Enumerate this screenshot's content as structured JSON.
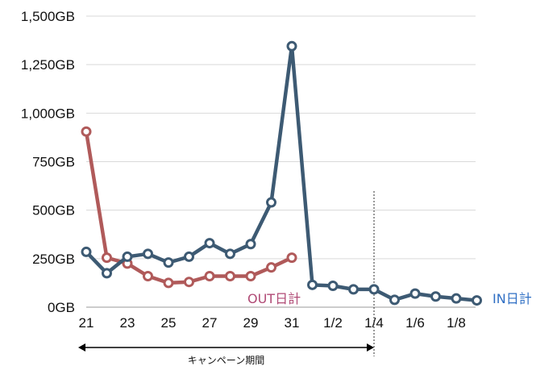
{
  "chart_data": {
    "type": "line",
    "title": "",
    "xlabel": "",
    "ylabel": "",
    "ylim": [
      0,
      1500
    ],
    "grid": "horizontal",
    "x": [
      "21",
      "22",
      "23",
      "24",
      "25",
      "26",
      "27",
      "28",
      "29",
      "30",
      "31",
      "1",
      "1/2",
      "3",
      "1/4",
      "5",
      "1/6",
      "7",
      "1/8",
      "9"
    ],
    "xtick_labels": [
      "21",
      "23",
      "25",
      "27",
      "29",
      "31",
      "1/2",
      "1/4",
      "1/6",
      "1/8"
    ],
    "ytick_labels": [
      "0GB",
      "250GB",
      "500GB",
      "750GB",
      "1,000GB",
      "1,250GB",
      "1,500GB"
    ],
    "yticks": [
      0,
      250,
      500,
      750,
      1000,
      1250,
      1500
    ],
    "series": [
      {
        "name": "IN日計",
        "color": "#3d5a73",
        "values": [
          285,
          175,
          260,
          275,
          230,
          260,
          330,
          275,
          325,
          540,
          1345,
          115,
          110,
          92,
          92,
          38,
          70,
          55,
          45,
          35
        ]
      },
      {
        "name": "OUT日計",
        "color": "#b05a5a",
        "values": [
          905,
          255,
          225,
          160,
          125,
          130,
          160,
          160,
          160,
          205,
          255,
          null,
          null,
          null,
          null,
          null,
          null,
          null,
          null,
          null
        ]
      }
    ],
    "annotations": {
      "campaign_label": "キャンペーン期間",
      "campaign_start_index": 0,
      "campaign_end_index": 14
    }
  }
}
